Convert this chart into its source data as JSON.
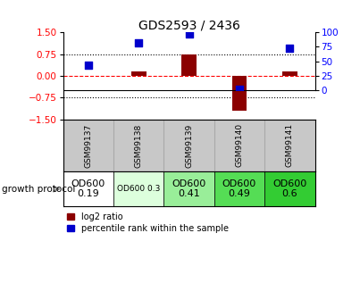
{
  "title": "GDS2593 / 2436",
  "samples": [
    "GSM99137",
    "GSM99138",
    "GSM99139",
    "GSM99140",
    "GSM99141"
  ],
  "log2_ratio": [
    0.0,
    0.15,
    0.75,
    -1.2,
    0.15
  ],
  "pct_rank": [
    43,
    82,
    98,
    2,
    73
  ],
  "ylim_left": [
    -1.5,
    1.5
  ],
  "ylim_right": [
    0,
    100
  ],
  "yticks_left": [
    -1.5,
    -0.75,
    0.0,
    0.75,
    1.5
  ],
  "yticks_right": [
    0,
    25,
    50,
    75,
    100
  ],
  "hlines": [
    0.75,
    -0.75
  ],
  "bar_color": "#8B0000",
  "dot_color": "#0000CC",
  "dot_size": 40,
  "protocol_labels": [
    "OD600\n0.19",
    "OD600 0.3",
    "OD600\n0.41",
    "OD600\n0.49",
    "OD600\n0.6"
  ],
  "protocol_colors": [
    "#ffffff",
    "#ddffdd",
    "#99ee99",
    "#55dd55",
    "#33cc33"
  ],
  "protocol_font_sizes": [
    8,
    6.5,
    8,
    8,
    8
  ],
  "sample_bg_color": "#c8c8c8",
  "growth_label": "growth protocol",
  "legend_bar_label": "log2 ratio",
  "legend_dot_label": "percentile rank within the sample"
}
